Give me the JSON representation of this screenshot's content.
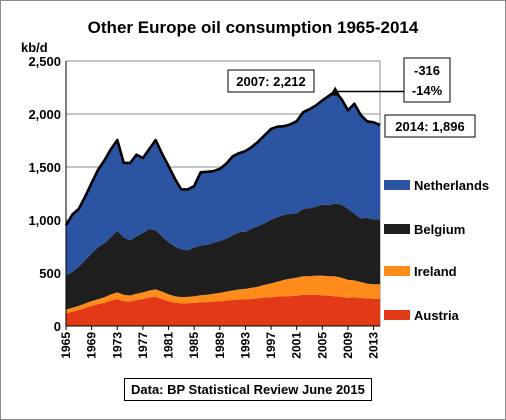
{
  "chart_data": {
    "type": "area",
    "title": "Other Europe oil consumption 1965-2014",
    "ylabel": "kb/d",
    "ylim": [
      0,
      2500
    ],
    "yticks": [
      "0",
      "500",
      "1,000",
      "1,500",
      "2,000",
      "2,500"
    ],
    "xlim": [
      1965,
      2014
    ],
    "xticks": [
      "1965",
      "1969",
      "1973",
      "1977",
      "1981",
      "1985",
      "1989",
      "1993",
      "1997",
      "2001",
      "2005",
      "2009",
      "2013"
    ],
    "x": [
      1965,
      1966,
      1967,
      1968,
      1969,
      1970,
      1971,
      1972,
      1973,
      1974,
      1975,
      1976,
      1977,
      1978,
      1979,
      1980,
      1981,
      1982,
      1983,
      1984,
      1985,
      1986,
      1987,
      1988,
      1989,
      1990,
      1991,
      1992,
      1993,
      1994,
      1995,
      1996,
      1997,
      1998,
      1999,
      2000,
      2001,
      2002,
      2003,
      2004,
      2005,
      2006,
      2007,
      2008,
      2009,
      2010,
      2011,
      2012,
      2013,
      2014
    ],
    "series": [
      {
        "name": "Austria",
        "color": "#e23a17",
        "values": [
          120,
          135,
          150,
          170,
          190,
          205,
          220,
          240,
          255,
          235,
          230,
          245,
          255,
          270,
          275,
          255,
          235,
          220,
          215,
          215,
          218,
          225,
          225,
          230,
          232,
          240,
          245,
          250,
          250,
          255,
          262,
          270,
          272,
          278,
          280,
          282,
          285,
          295,
          295,
          295,
          290,
          285,
          280,
          275,
          265,
          270,
          265,
          260,
          258,
          258
        ]
      },
      {
        "name": "Ireland",
        "color": "#ff8c1a",
        "values": [
          35,
          37,
          40,
          42,
          45,
          48,
          52,
          58,
          62,
          60,
          58,
          60,
          62,
          65,
          70,
          70,
          65,
          60,
          58,
          60,
          62,
          65,
          70,
          75,
          80,
          85,
          90,
          95,
          100,
          105,
          110,
          120,
          130,
          140,
          155,
          165,
          172,
          175,
          175,
          180,
          185,
          185,
          190,
          180,
          170,
          160,
          150,
          140,
          135,
          135
        ]
      },
      {
        "name": "Belgium",
        "color": "#1e1e1e",
        "values": [
          320,
          340,
          370,
          410,
          450,
          490,
          510,
          540,
          580,
          540,
          520,
          540,
          560,
          580,
          560,
          520,
          490,
          470,
          450,
          440,
          460,
          470,
          470,
          480,
          490,
          500,
          520,
          540,
          540,
          560,
          570,
          580,
          600,
          610,
          615,
          610,
          605,
          635,
          640,
          650,
          670,
          670,
          685,
          690,
          670,
          630,
          600,
          620,
          610,
          615
        ]
      },
      {
        "name": "Netherlands",
        "color": "#2b55a3",
        "values": [
          475,
          540,
          545,
          600,
          665,
          730,
          780,
          830,
          858,
          705,
          730,
          771,
          708,
          755,
          850,
          780,
          720,
          640,
          565,
          575,
          580,
          690,
          690,
          675,
          680,
          705,
          745,
          745,
          760,
          770,
          798,
          830,
          858,
          852,
          835,
          845,
          870,
          912,
          935,
          955,
          983,
          1030,
          1057,
          995,
          930,
          1037,
          975,
          910,
          919,
          888
        ]
      }
    ],
    "annotations": [
      {
        "text": "2007: 2,212",
        "x": 2007,
        "y": 2212
      },
      {
        "text": "2014: 1,896",
        "x": 2014,
        "y": 1896
      },
      {
        "text": "-316",
        "x": 2014,
        "y": 2212
      },
      {
        "text": "-14%",
        "x": 2014,
        "y": 2212
      }
    ],
    "source": "Data: BP Statistical Review June 2015",
    "legend_position": "right"
  }
}
